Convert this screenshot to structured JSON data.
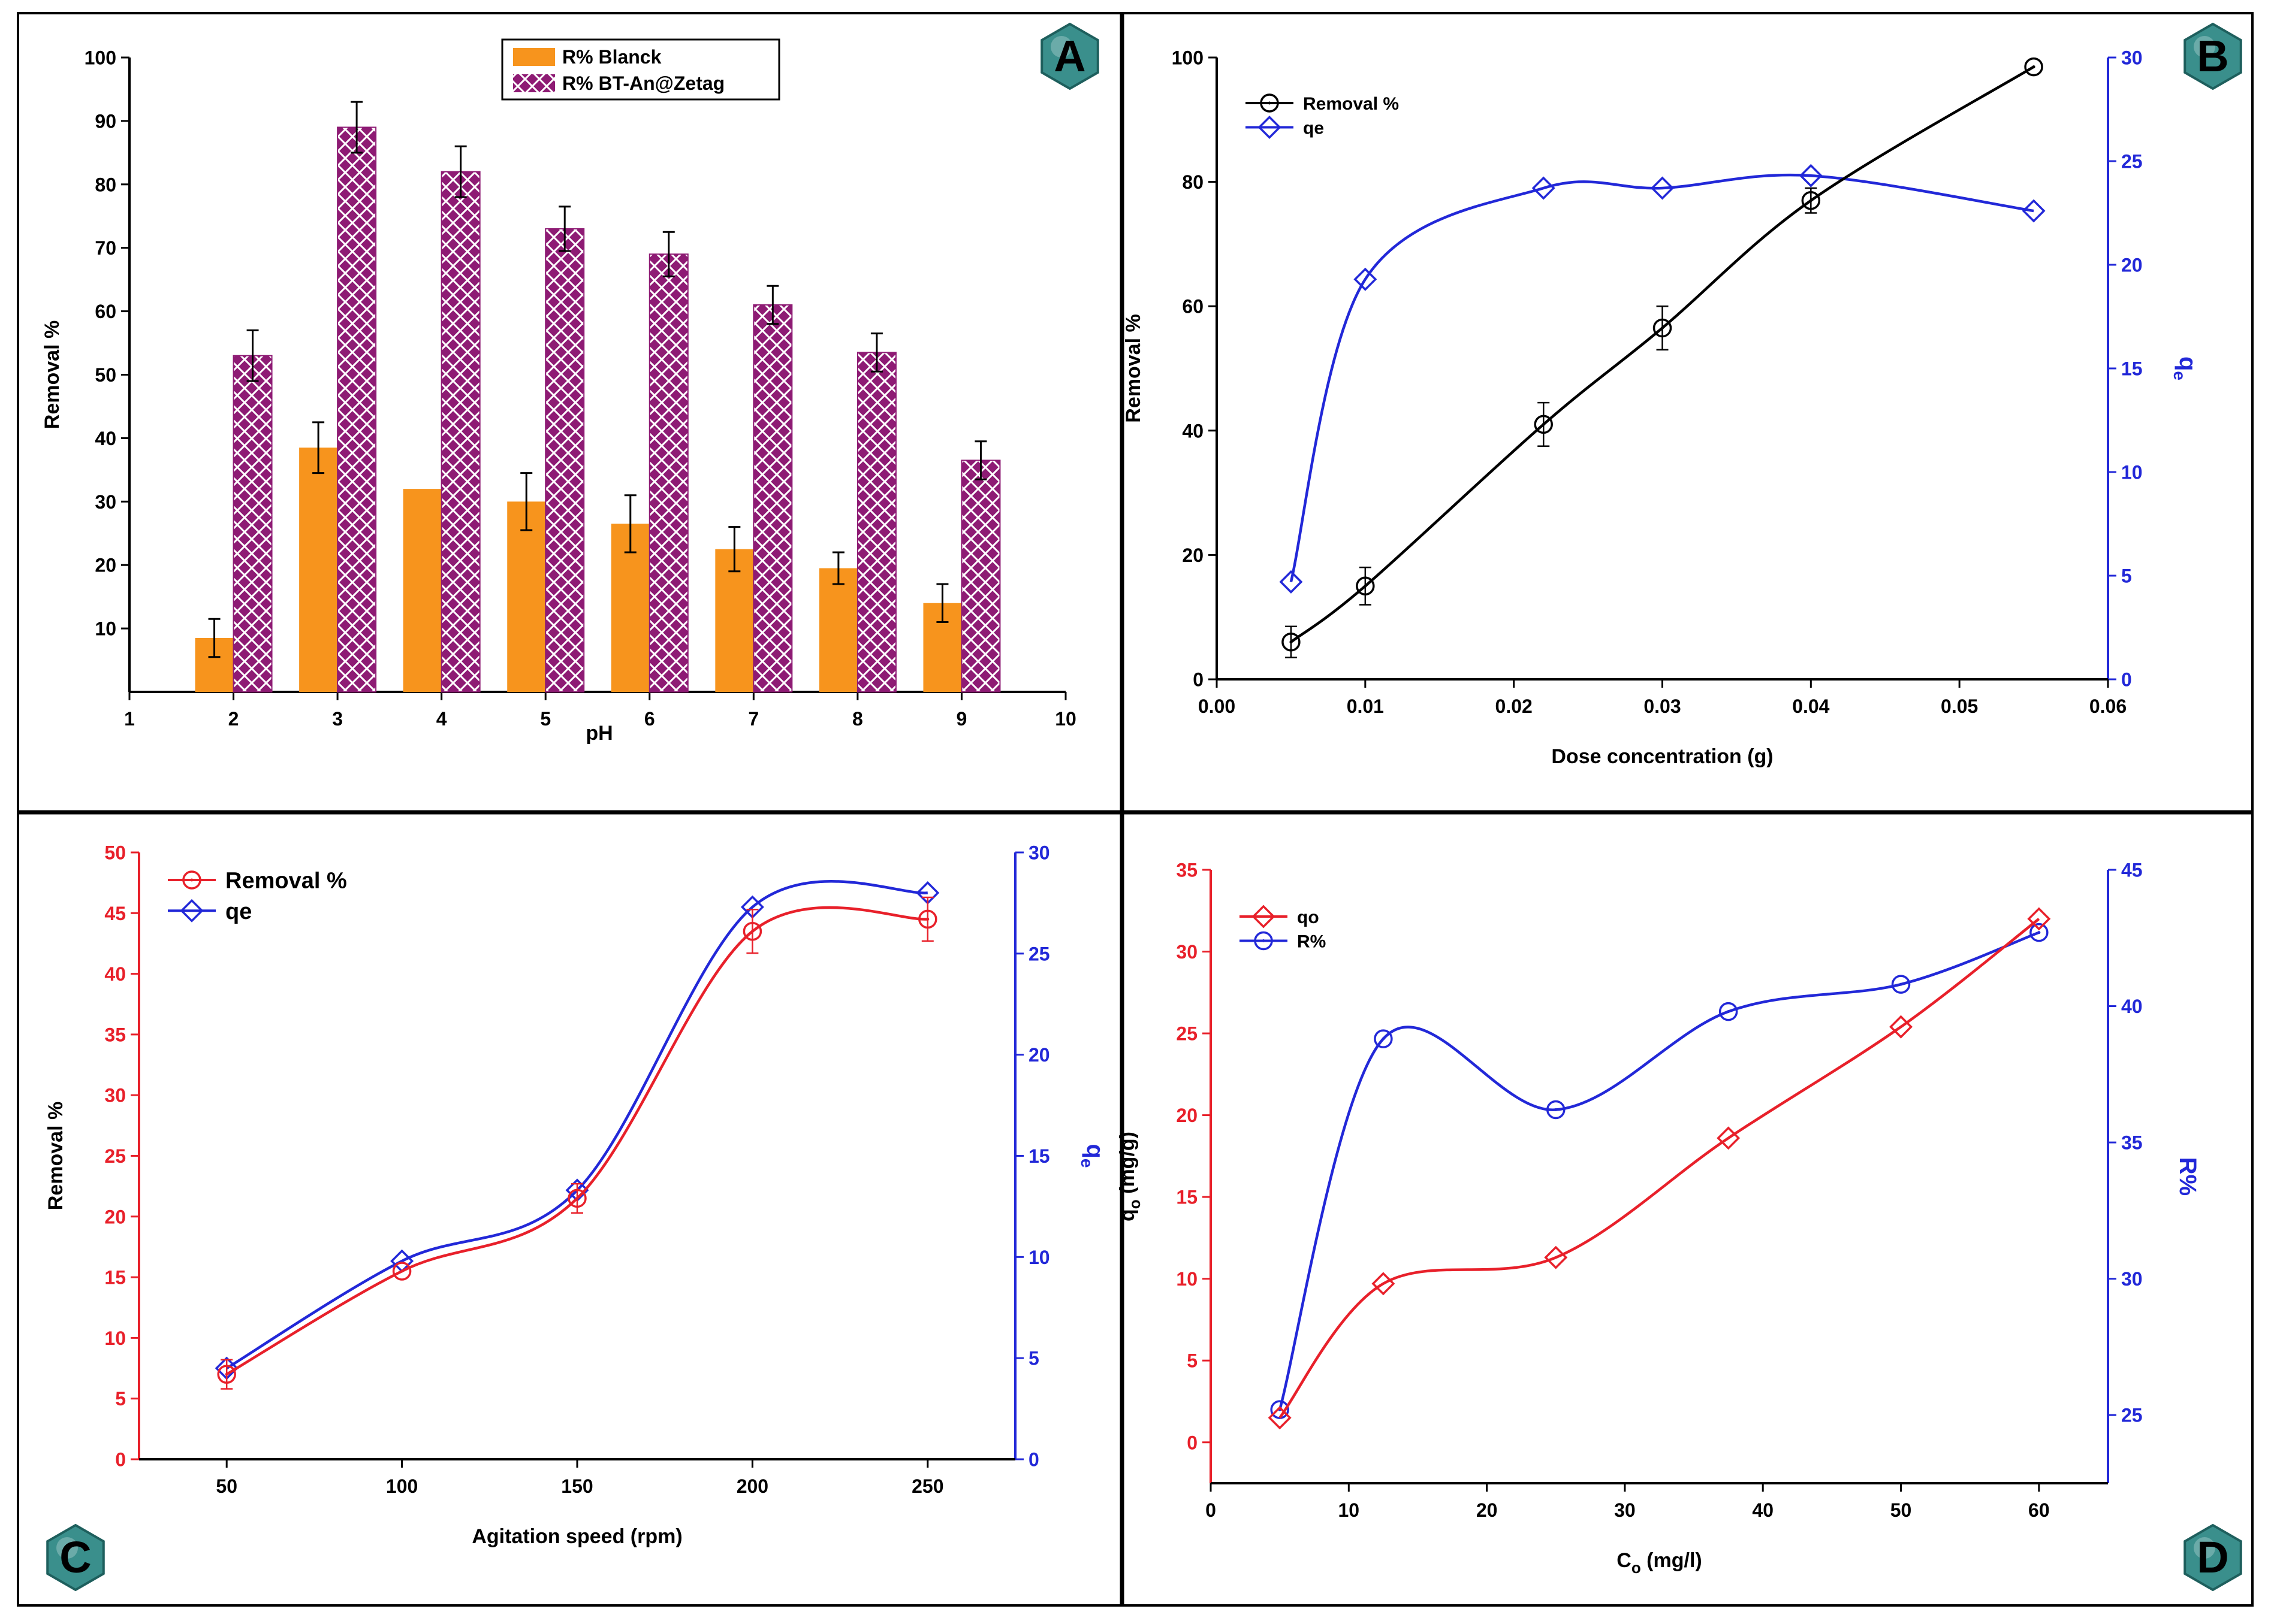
{
  "colors": {
    "blank": "#F7941D",
    "bt": "#8E1B74",
    "red": "#E8202A",
    "blue": "#2228D8",
    "badge": "#3A8F8C",
    "frame": "#000000"
  },
  "chart_data": [
    {
      "panel": "A",
      "type": "bar",
      "xlabel": "pH",
      "ylabel": "Removal %",
      "xlim": [
        1,
        10
      ],
      "ylim": [
        0,
        100
      ],
      "xticks": [
        1,
        2,
        3,
        4,
        5,
        6,
        7,
        8,
        9,
        10
      ],
      "yticks": [
        10,
        20,
        30,
        40,
        50,
        60,
        70,
        80,
        90,
        100
      ],
      "legend_position": "top-center",
      "categories": [
        2,
        3,
        4,
        5,
        6,
        7,
        8,
        9
      ],
      "series": [
        {
          "name": "R% Blanck",
          "values": [
            8.5,
            38.5,
            32,
            30,
            26.5,
            22.5,
            19.5,
            14
          ],
          "errors": [
            3,
            4,
            0,
            4.5,
            4.5,
            3.5,
            2.5,
            3
          ]
        },
        {
          "name": "R% BT-An@Zetag",
          "values": [
            53,
            89,
            82,
            73,
            69,
            61,
            53.5,
            36.5
          ],
          "errors": [
            4,
            4,
            4,
            3.5,
            3.5,
            3,
            3,
            3
          ]
        }
      ]
    },
    {
      "panel": "B",
      "type": "line",
      "xlabel": "Dose concentration (g)",
      "ylabel": "Removal %",
      "y2label": "q",
      "y2label_sub": "e",
      "xlim": [
        0,
        0.06
      ],
      "ylim": [
        0,
        100
      ],
      "y2lim": [
        0,
        30
      ],
      "xticks": [
        "0.00",
        "0.01",
        "0.02",
        "0.03",
        "0.04",
        "0.05",
        "0.06"
      ],
      "yticks": [
        0,
        20,
        40,
        60,
        80,
        100
      ],
      "y2ticks": [
        0,
        5,
        10,
        15,
        20,
        25,
        30
      ],
      "legend_position": "top-left",
      "series": [
        {
          "name": "Removal %",
          "axis": "left",
          "marker": "circle",
          "x": [
            0.005,
            0.01,
            0.022,
            0.03,
            0.04,
            0.055
          ],
          "y": [
            6,
            15,
            41,
            56.5,
            77,
            98.5
          ]
        },
        {
          "name": "qe",
          "axis": "right",
          "marker": "diamond",
          "x": [
            0.005,
            0.01,
            0.022,
            0.03,
            0.04,
            0.055
          ],
          "y": [
            4.7,
            19.3,
            23.7,
            23.7,
            24.3,
            22.6
          ]
        }
      ]
    },
    {
      "panel": "C",
      "type": "line",
      "xlabel": "Agitation speed (rpm)",
      "ylabel": "Removal %",
      "y2label": "q",
      "y2label_sub": "e",
      "xlim": [
        25,
        275
      ],
      "ylim": [
        0,
        50
      ],
      "y2lim": [
        0,
        30
      ],
      "xticks": [
        50,
        100,
        150,
        200,
        250
      ],
      "yticks": [
        0,
        5,
        10,
        15,
        20,
        25,
        30,
        35,
        40,
        45,
        50
      ],
      "y2ticks": [
        0,
        5,
        10,
        15,
        20,
        25,
        30
      ],
      "legend_position": "top-left",
      "series": [
        {
          "name": "Removal %",
          "axis": "left",
          "marker": "circle",
          "x": [
            50,
            100,
            150,
            200,
            250
          ],
          "y": [
            7,
            15.5,
            21.5,
            43.5,
            44.5
          ]
        },
        {
          "name": "qe",
          "axis": "right",
          "marker": "diamond",
          "x": [
            50,
            100,
            150,
            200,
            250
          ],
          "y": [
            4.5,
            9.8,
            13.3,
            27.3,
            28
          ]
        }
      ]
    },
    {
      "panel": "D",
      "type": "line",
      "xlabel": "C",
      "xlabel_sub": "o",
      "xlabel_unit": "(mg/l)",
      "ylabel": "q",
      "ylabel_sub": "o",
      "ylabel_unit": "(mg/g)",
      "y2label": "R%",
      "xlim": [
        0,
        65
      ],
      "ylim": [
        -2.5,
        35
      ],
      "y2lim": [
        22.5,
        45
      ],
      "xticks": [
        0,
        10,
        20,
        30,
        40,
        50,
        60
      ],
      "yticks": [
        0,
        5,
        10,
        15,
        20,
        25,
        30,
        35
      ],
      "y2ticks": [
        25,
        30,
        35,
        40,
        45
      ],
      "legend_position": "top-left",
      "series": [
        {
          "name": "qo",
          "axis": "left",
          "marker": "diamond",
          "x": [
            5,
            12.5,
            25,
            37.5,
            50,
            60
          ],
          "y": [
            1.5,
            9.7,
            11.3,
            18.6,
            25.4,
            32
          ]
        },
        {
          "name": "R%",
          "axis": "right",
          "marker": "circle",
          "x": [
            5,
            12.5,
            25,
            37.5,
            50,
            60
          ],
          "y": [
            25.2,
            38.8,
            36.2,
            39.8,
            40.8,
            42.7
          ]
        }
      ]
    }
  ]
}
